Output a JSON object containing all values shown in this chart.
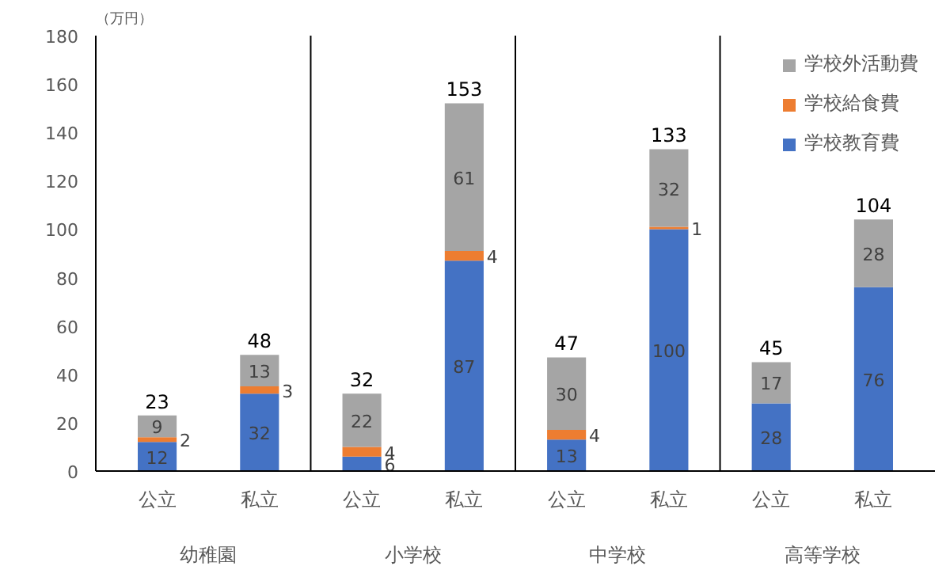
{
  "chart_data": {
    "type": "bar",
    "stacked": true,
    "ylabel": "（万円）",
    "categories": [
      "公立",
      "私立",
      "公立",
      "私立",
      "公立",
      "私立",
      "公立",
      "私立"
    ],
    "annotations": [
      "幼稚園",
      "小学校",
      "中学校",
      "高等学校"
    ],
    "series": [
      {
        "name": "学校教育費",
        "color": "#4472c4",
        "values": [
          12,
          32,
          6,
          87,
          13,
          100,
          28,
          76
        ]
      },
      {
        "name": "学校給食費",
        "color": "#ed7d31",
        "values": [
          2,
          3,
          4,
          4,
          4,
          1,
          null,
          null
        ]
      },
      {
        "name": "学校外活動費",
        "color": "#a5a5a5",
        "values": [
          9,
          13,
          22,
          61,
          30,
          32,
          17,
          28
        ]
      }
    ],
    "totals": [
      "23",
      "48",
      "32",
      "153",
      "47",
      "133",
      "45",
      "104"
    ],
    "data_labels": true,
    "ylim": [
      0,
      180
    ],
    "yticks": [
      0,
      20,
      40,
      60,
      80,
      100,
      120,
      140,
      160,
      180
    ],
    "grid": false,
    "legend": "top right"
  }
}
